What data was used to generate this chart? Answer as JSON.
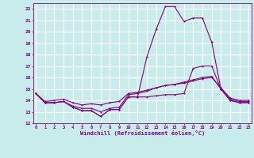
{
  "xlabel": "Windchill (Refroidissement éolien,°C)",
  "bg_color": "#c8ecec",
  "line_color": "#800080",
  "grid_color": "#ffffff",
  "xmin": 0,
  "xmax": 23,
  "ymin": 12,
  "ymax": 22.5,
  "yticks": [
    12,
    13,
    14,
    15,
    16,
    17,
    18,
    19,
    20,
    21,
    22
  ],
  "xticks": [
    0,
    1,
    2,
    3,
    4,
    5,
    6,
    7,
    8,
    9,
    10,
    11,
    12,
    13,
    14,
    15,
    16,
    17,
    18,
    19,
    20,
    21,
    22,
    23
  ],
  "series1": [
    14.6,
    13.8,
    13.8,
    13.9,
    13.4,
    13.1,
    13.1,
    12.6,
    13.2,
    13.2,
    14.3,
    14.3,
    17.8,
    20.2,
    22.2,
    22.2,
    20.9,
    21.2,
    21.2,
    19.1,
    15.0,
    14.0,
    13.8,
    13.8
  ],
  "series2": [
    14.6,
    13.8,
    13.8,
    13.9,
    13.4,
    13.1,
    13.1,
    12.6,
    13.2,
    13.2,
    14.3,
    14.3,
    14.3,
    14.4,
    14.5,
    14.5,
    14.6,
    16.8,
    17.0,
    17.0,
    15.0,
    14.0,
    13.8,
    13.8
  ],
  "series3": [
    14.6,
    13.8,
    13.8,
    13.9,
    13.5,
    13.3,
    13.3,
    13.0,
    13.3,
    13.4,
    14.5,
    14.6,
    14.8,
    15.1,
    15.3,
    15.4,
    15.6,
    15.8,
    16.0,
    16.1,
    15.0,
    14.1,
    13.9,
    13.9
  ],
  "series4": [
    14.6,
    13.9,
    14.0,
    14.1,
    13.8,
    13.6,
    13.7,
    13.6,
    13.8,
    13.9,
    14.6,
    14.7,
    14.9,
    15.1,
    15.3,
    15.4,
    15.5,
    15.7,
    15.9,
    16.0,
    15.1,
    14.2,
    14.0,
    14.0
  ]
}
